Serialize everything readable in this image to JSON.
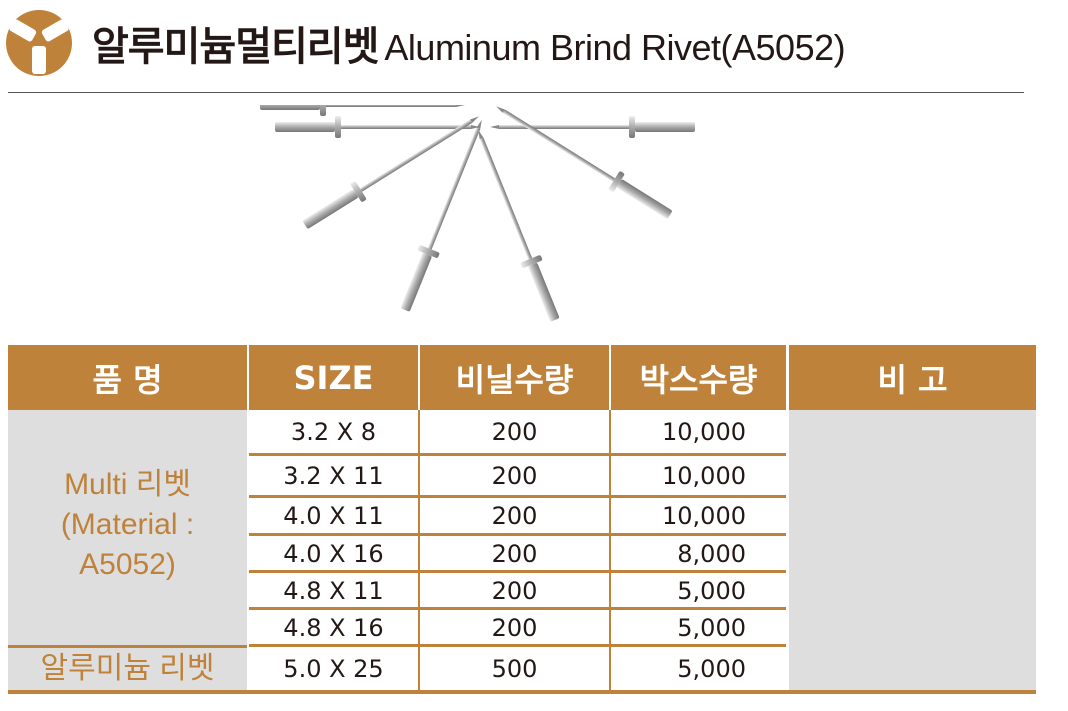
{
  "header": {
    "title_ko": "알루미늄멀티리벳",
    "title_en": "Aluminum Brind Rivet(A5052)",
    "logo_icon": "company-logo-icon"
  },
  "colors": {
    "brand": "#bf823b",
    "cell_gray": "#dedede",
    "text": "#231815"
  },
  "table": {
    "columns": [
      "품   명",
      "SIZE",
      "비닐수량",
      "박스수량",
      "비   고"
    ],
    "groups": [
      {
        "name": "Multi 리벳 (Material : A5052)",
        "name_lines": [
          "Multi 리벳",
          "(Material :",
          "A5052)"
        ]
      },
      {
        "name": "알루미늄 리벳"
      }
    ],
    "rows": [
      {
        "size": "3.2 X 8",
        "bag_qty": "200",
        "box_qty": "10,000"
      },
      {
        "size": "3.2 X 11",
        "bag_qty": "200",
        "box_qty": "10,000"
      },
      {
        "size": "4.0 X 11",
        "bag_qty": "200",
        "box_qty": "10,000"
      },
      {
        "size": "4.0 X 16",
        "bag_qty": "200",
        "box_qty": "8,000"
      },
      {
        "size": "4.8 X 11",
        "bag_qty": "200",
        "box_qty": "5,000"
      },
      {
        "size": "4.8 X 16",
        "bag_qty": "200",
        "box_qty": "5,000"
      },
      {
        "size": "5.0 X 25",
        "bag_qty": "500",
        "box_qty": "5,000"
      }
    ],
    "remark": ""
  }
}
